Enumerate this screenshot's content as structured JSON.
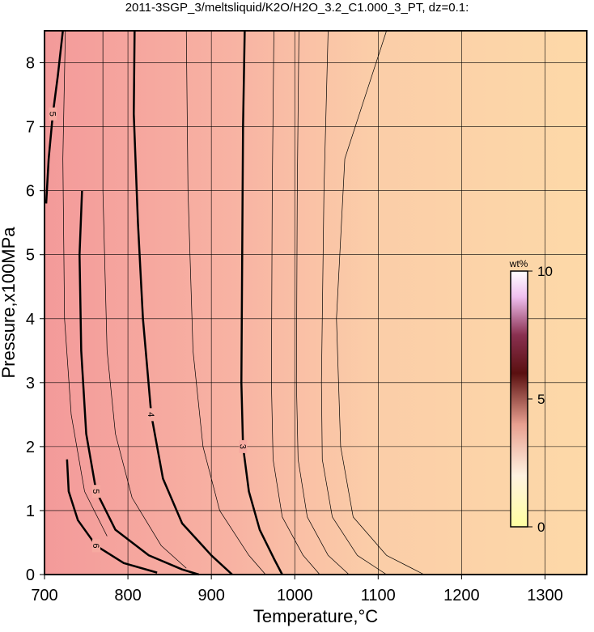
{
  "chart_data": {
    "type": "contour",
    "title": "2011-3SGP_3/meltsliquid/K2O/H2O_3.2_C1.000_3_PT, dz=0.1:",
    "xlabel": "Temperature,°C",
    "ylabel": "Pressure,x100MPa",
    "xlim": [
      700,
      1350
    ],
    "ylim": [
      0,
      8.5
    ],
    "xticks": [
      700,
      800,
      900,
      1000,
      1100,
      1200,
      1300
    ],
    "yticks": [
      0,
      1,
      2,
      3,
      4,
      5,
      6,
      7,
      8
    ],
    "grid": true,
    "colorbar": {
      "label": "wt%",
      "clim": [
        0,
        10
      ],
      "ticks": [
        0,
        5,
        10
      ]
    },
    "contours": [
      {
        "level": 3,
        "x": [
          940,
          938,
          937,
          936,
          938,
          945,
          958,
          975,
          985
        ],
        "y": [
          8.5,
          7,
          5,
          3,
          2,
          1.3,
          0.7,
          0.25,
          0
        ]
      },
      {
        "level": 4,
        "x": [
          808,
          807,
          812,
          818,
          828,
          842,
          865,
          900,
          925
        ],
        "y": [
          8.5,
          7.2,
          5.5,
          4,
          2.5,
          1.5,
          0.8,
          0.3,
          0
        ]
      },
      {
        "level": 5,
        "x": [
          745,
          742,
          744,
          750,
          762,
          785,
          825,
          865,
          885
        ],
        "y": [
          6,
          5,
          3.5,
          2.2,
          1.3,
          0.7,
          0.3,
          0.08,
          0
        ]
      },
      {
        "level": 6,
        "x": [
          727,
          729,
          740,
          762,
          795,
          835
        ],
        "y": [
          1.8,
          1.3,
          0.85,
          0.45,
          0.18,
          0.03
        ]
      },
      {
        "level": 5,
        "x": [
          702,
          705,
          710,
          716,
          722
        ],
        "y": [
          5.8,
          6.5,
          7.2,
          7.8,
          8.5
        ]
      }
    ],
    "thin_contours": [
      {
        "x": [
          975,
          973,
          972,
          974,
          985,
          1010,
          1030
        ],
        "y": [
          8.5,
          6,
          3,
          1.8,
          0.9,
          0.3,
          0
        ]
      },
      {
        "x": [
          1005,
          1003,
          1002,
          1004,
          1015,
          1040,
          1065
        ],
        "y": [
          8.5,
          6,
          3,
          1.8,
          0.9,
          0.3,
          0
        ]
      },
      {
        "x": [
          1040,
          1035,
          1032,
          1033,
          1045,
          1075,
          1110
        ],
        "y": [
          8.5,
          6,
          3,
          1.8,
          0.9,
          0.3,
          0
        ]
      },
      {
        "x": [
          1110,
          1060,
          1050,
          1055,
          1070,
          1110,
          1155
        ],
        "y": [
          8.5,
          6.5,
          4,
          2,
          0.9,
          0.3,
          0
        ]
      },
      {
        "x": [
          870,
          872,
          878,
          890,
          910,
          945,
          965
        ],
        "y": [
          8.5,
          6,
          3.5,
          2,
          1,
          0.3,
          0
        ]
      },
      {
        "x": [
          770,
          770,
          775,
          785,
          805,
          840,
          870
        ],
        "y": [
          8.5,
          6,
          3.5,
          2.2,
          1.2,
          0.45,
          0.1
        ]
      },
      {
        "x": [
          725,
          722,
          724,
          732,
          748,
          775
        ],
        "y": [
          8.5,
          6.5,
          4,
          2.5,
          1.3,
          0.6
        ]
      }
    ]
  }
}
